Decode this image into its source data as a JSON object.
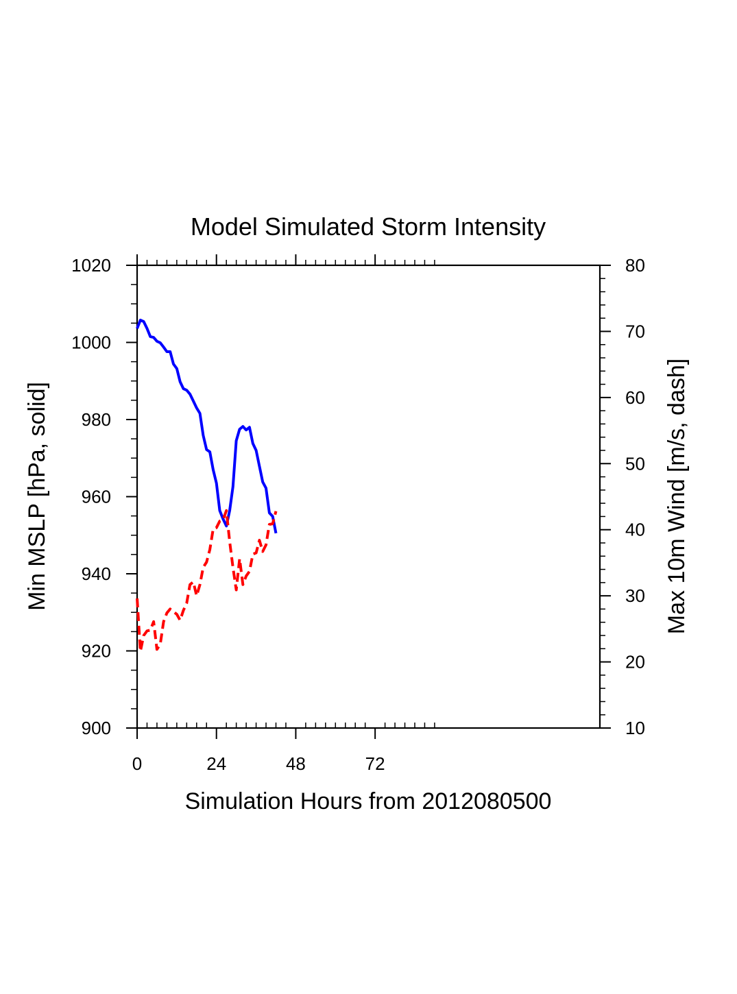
{
  "chart_data": {
    "type": "line",
    "title": "Model Simulated Storm Intensity",
    "xlabel": "Simulation Hours from 2012080500",
    "ylabel_left": "Min MSLP  [hPa, solid]",
    "ylabel_right": "Max 10m Wind  [m/s, dash]",
    "xlim": [
      0,
      140
    ],
    "ylim_left": [
      900,
      1020
    ],
    "ylim_right": [
      10,
      80
    ],
    "x_major_ticks": [
      0,
      24,
      48,
      72
    ],
    "x_minor_tick_step": 3,
    "x_minor_tick_max": 90,
    "y_left_ticks": [
      900,
      920,
      940,
      960,
      980,
      1000,
      1020
    ],
    "y_left_minor_step": 5,
    "y_right_ticks": [
      10,
      20,
      30,
      40,
      50,
      60,
      70,
      80
    ],
    "y_right_minor_step": 2,
    "grid": false,
    "legend": "none",
    "x": [
      0,
      1,
      2,
      3,
      4,
      5,
      6,
      7,
      8,
      9,
      10,
      11,
      12,
      13,
      14,
      15,
      16,
      17,
      18,
      19,
      20,
      21,
      22,
      23,
      24,
      25,
      26,
      27,
      28,
      29,
      30,
      31,
      32,
      33,
      34,
      35,
      36,
      37,
      38,
      39,
      40,
      41,
      42
    ],
    "series": [
      {
        "name": "Min MSLP",
        "axis": "left",
        "units": "hPa",
        "style": "solid",
        "color": "#0000ff",
        "values": [
          1003.6,
          1005.8,
          1005.4,
          1003.6,
          1001.5,
          1001.3,
          1000.3,
          999.9,
          998.8,
          997.6,
          997.6,
          994.4,
          993.2,
          989.8,
          988.0,
          987.6,
          986.6,
          984.8,
          983.0,
          981.6,
          975.9,
          972.2,
          971.6,
          967.0,
          963.5,
          956.4,
          954.2,
          952.4,
          956.4,
          962.6,
          974.5,
          977.5,
          978.2,
          977.3,
          978.0,
          973.8,
          972.0,
          967.9,
          963.8,
          962.2,
          955.8,
          954.9,
          950.5
        ]
      },
      {
        "name": "Max 10m Wind",
        "axis": "right",
        "units": "m/s",
        "style": "dash",
        "color": "#ff0000",
        "values": [
          29.6,
          21.6,
          24.0,
          24.7,
          24.8,
          26.1,
          21.9,
          22.7,
          26.1,
          27.4,
          28.0,
          27.6,
          27.2,
          26.3,
          27.8,
          28.9,
          31.7,
          32.1,
          30.0,
          31.7,
          34.3,
          35.1,
          37.0,
          40.1,
          40.3,
          41.3,
          41.5,
          42.9,
          38.2,
          34.3,
          30.9,
          35.6,
          31.7,
          33.0,
          33.7,
          36.3,
          36.5,
          38.4,
          36.7,
          37.7,
          40.8,
          40.9,
          42.8
        ]
      }
    ]
  }
}
